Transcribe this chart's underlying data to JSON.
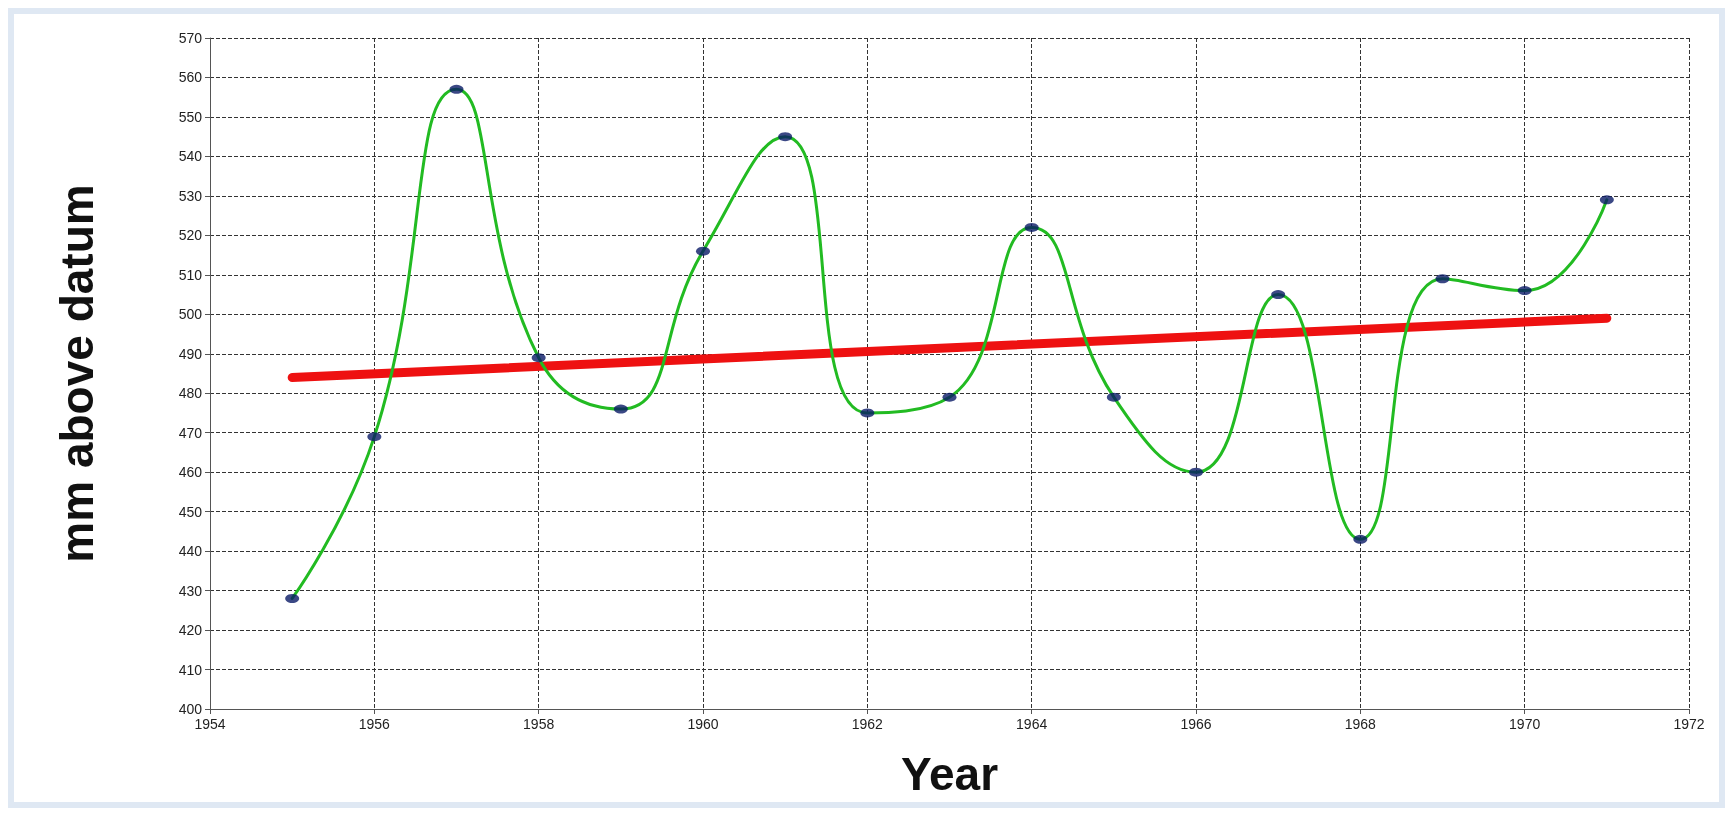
{
  "chart_data": {
    "type": "line",
    "xlabel": "Year",
    "ylabel": "mm above datum",
    "xlim": [
      1954,
      1972
    ],
    "xticks": [
      1954,
      1956,
      1958,
      1960,
      1962,
      1964,
      1966,
      1968,
      1970,
      1972
    ],
    "ylim": [
      400,
      570
    ],
    "yticks": [
      400,
      410,
      420,
      430,
      440,
      450,
      460,
      470,
      480,
      490,
      500,
      510,
      520,
      530,
      540,
      550,
      560,
      570
    ],
    "x": [
      1955,
      1956,
      1957,
      1958,
      1959,
      1960,
      1961,
      1962,
      1963,
      1964,
      1965,
      1966,
      1967,
      1968,
      1969,
      1970,
      1971
    ],
    "series": [
      {
        "color": "#22bb22",
        "marker": "none",
        "values": [
          428,
          469,
          557,
          489,
          476,
          516,
          545,
          475,
          479,
          522,
          479,
          460,
          505,
          443,
          509,
          506,
          529
        ]
      },
      {
        "type": "scatter",
        "color": "#0a1a66",
        "marker": "circle",
        "values": [
          428,
          469,
          557,
          489,
          476,
          516,
          545,
          475,
          479,
          522,
          479,
          460,
          505,
          443,
          509,
          506,
          529
        ]
      },
      {
        "color": "#ee1111",
        "marker": "none",
        "x": [
          1955,
          1971
        ],
        "values": [
          484,
          499
        ]
      }
    ],
    "grid": true
  }
}
